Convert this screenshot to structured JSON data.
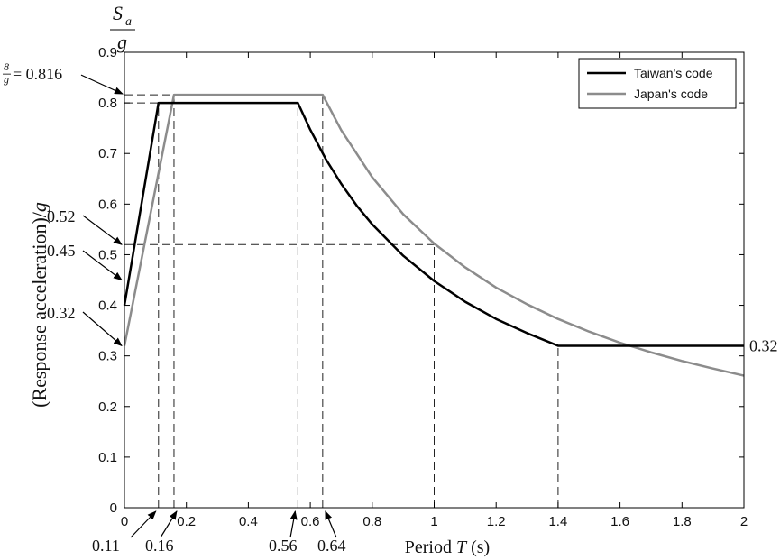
{
  "chart_data": {
    "type": "line",
    "title": "",
    "xlabel_prefix": "Period ",
    "xlabel_var": "T",
    "xlabel_suffix": " (s)",
    "ylabel_prefix": "(Response acceleration)/",
    "ylabel_var": "g",
    "top_axis_label_num": "S",
    "top_axis_label_sub": "a",
    "top_axis_label_den": "g",
    "xlim": [
      0,
      2
    ],
    "ylim": [
      0,
      0.9
    ],
    "xticks": [
      "0",
      "0.2",
      "0.4",
      "0.6",
      "0.8",
      "1",
      "1.2",
      "1.4",
      "1.6",
      "1.8",
      "2"
    ],
    "yticks": [
      "0",
      "0.1",
      "0.2",
      "0.3",
      "0.4",
      "0.5",
      "0.6",
      "0.7",
      "0.8",
      "0.9"
    ],
    "grid": false,
    "legend_position": "top-right",
    "series": [
      {
        "name": "Taiwan's code",
        "color": "#000000",
        "points": [
          [
            0,
            0.4
          ],
          [
            0.11,
            0.8
          ],
          [
            0.56,
            0.8
          ],
          [
            0.6,
            0.747
          ],
          [
            0.65,
            0.689
          ],
          [
            0.7,
            0.64
          ],
          [
            0.75,
            0.597
          ],
          [
            0.8,
            0.56
          ],
          [
            0.9,
            0.498
          ],
          [
            1.0,
            0.448
          ],
          [
            1.1,
            0.407
          ],
          [
            1.2,
            0.373
          ],
          [
            1.3,
            0.345
          ],
          [
            1.4,
            0.32
          ],
          [
            2.0,
            0.32
          ]
        ]
      },
      {
        "name": "Japan's code",
        "color": "#8c8c8c",
        "points": [
          [
            0,
            0.32
          ],
          [
            0.16,
            0.816
          ],
          [
            0.64,
            0.816
          ],
          [
            0.7,
            0.746
          ],
          [
            0.8,
            0.653
          ],
          [
            0.9,
            0.58
          ],
          [
            1.0,
            0.522
          ],
          [
            1.1,
            0.475
          ],
          [
            1.2,
            0.435
          ],
          [
            1.3,
            0.402
          ],
          [
            1.4,
            0.373
          ],
          [
            1.5,
            0.348
          ],
          [
            1.6,
            0.326
          ],
          [
            1.7,
            0.307
          ],
          [
            1.8,
            0.29
          ],
          [
            1.9,
            0.275
          ],
          [
            2.0,
            0.261
          ]
        ]
      }
    ],
    "guide_lines": {
      "vertical_x": [
        0.11,
        0.16,
        0.56,
        0.64,
        1.0,
        1.4
      ],
      "vertical_to_y": [
        0.8,
        0.816,
        0.8,
        0.816,
        0.522,
        0.32
      ],
      "horizontal_y": [
        0.816,
        0.8,
        0.52,
        0.45
      ],
      "horizontal_to_x": [
        0.64,
        0.11,
        1.0,
        1.0
      ]
    },
    "annotations": {
      "y_label_eq_frac_num": "8",
      "y_label_eq_frac_den": "g",
      "y_label_eq_value": " = 0.816",
      "y_labels": [
        {
          "text": "0.52",
          "y": 0.52
        },
        {
          "text": "0.45",
          "y": 0.45
        },
        {
          "text": "0.32",
          "y": 0.32
        }
      ],
      "x_labels": [
        {
          "text": "0.11",
          "x": 0.11
        },
        {
          "text": "0.16",
          "x": 0.16
        },
        {
          "text": "0.56",
          "x": 0.56
        },
        {
          "text": "0.64",
          "x": 0.64
        }
      ],
      "right_label": "0.32",
      "right_label_y": 0.32
    }
  }
}
